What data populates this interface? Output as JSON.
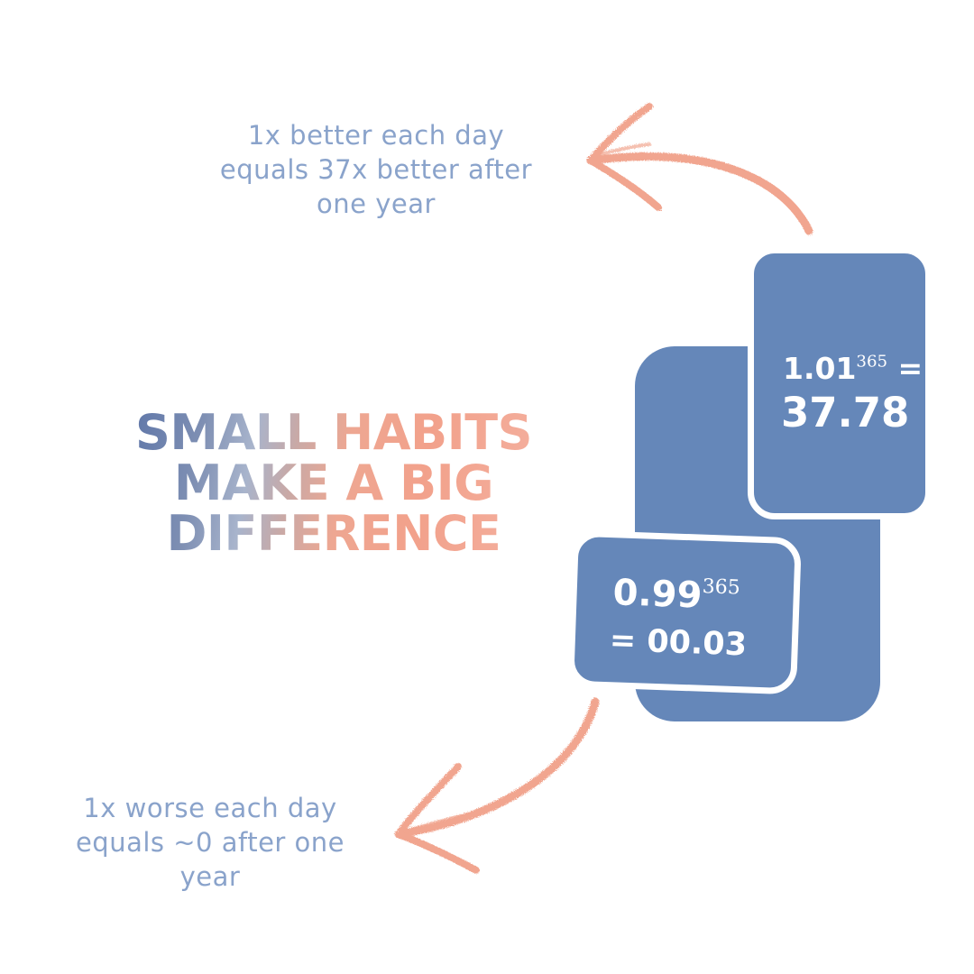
{
  "captions": {
    "top": [
      "1x better each day",
      "equals 37x better after",
      "one year"
    ],
    "bottom": [
      "1x worse each day",
      "equals ~0 after one",
      "year"
    ]
  },
  "headline": [
    "SMALL HABITS",
    "MAKE A BIG",
    "DIFFERENCE"
  ],
  "cards": {
    "top": {
      "base": "1.01",
      "exponent": "365",
      "equals": "=",
      "result": "37.78"
    },
    "bottom": {
      "base": "0.99",
      "exponent": "365",
      "result": "= 00.03"
    }
  },
  "colors": {
    "card": "#6587b9",
    "caption": "#8aa3cb",
    "arrow": "#f1a58f",
    "headline_gradient": [
      "#5d75a8",
      "#f2a18b"
    ]
  },
  "icons": [
    "curved-arrow-up-left-icon",
    "curved-arrow-down-left-icon"
  ]
}
